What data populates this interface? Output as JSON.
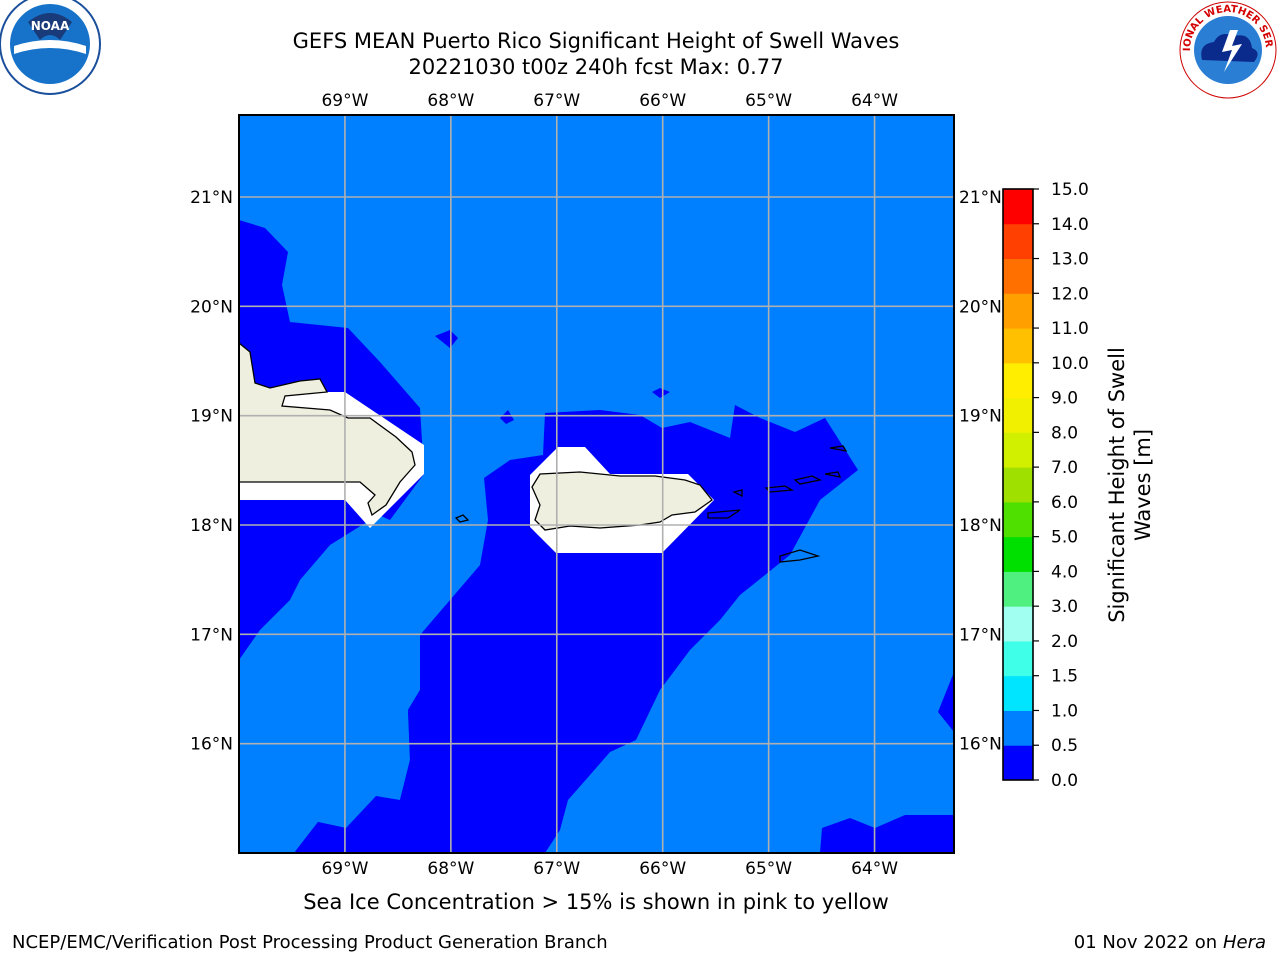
{
  "title": "GEFS MEAN Puerto Rico Significant Height of Swell Waves",
  "subtitle": "20221030 t00z 240h fcst   Max: 0.77",
  "note": "Sea Ice Concentration > 15% is shown in pink to yellow",
  "footer": {
    "left": "NCEP/EMC/Verification Post Processing Product Generation Branch",
    "date": "01 Nov 2022 on",
    "machine": "Hera"
  },
  "logos": {
    "left": "noaa-logo",
    "left_text": "NOAA",
    "right": "nws-logo",
    "right_text": "NATIONAL WEATHER SERVICE"
  },
  "map": {
    "lon_range": [
      -70,
      -63.25
    ],
    "lat_range": [
      15,
      21.75
    ],
    "lon_ticks": [
      "69°W",
      "68°W",
      "67°W",
      "66°W",
      "65°W",
      "64°W"
    ],
    "lat_ticks": [
      "16°N",
      "17°N",
      "18°N",
      "19°N",
      "20°N",
      "21°N"
    ],
    "grid": true,
    "land_color": "#efefdf",
    "coastline_color": "#000000"
  },
  "colorbar": {
    "label_line1": "Significant Height of Swell",
    "label_line2": "Waves [m]",
    "ticks": [
      "0.0",
      "0.5",
      "1.0",
      "1.5",
      "2.0",
      "3.0",
      "4.0",
      "5.0",
      "6.0",
      "7.0",
      "8.0",
      "9.0",
      "10.0",
      "11.0",
      "12.0",
      "13.0",
      "14.0",
      "15.0"
    ],
    "colors": [
      "#0000ff",
      "#0080ff",
      "#00e5ff",
      "#40ffe8",
      "#a0fff0",
      "#50f080",
      "#00e000",
      "#50e000",
      "#a0e000",
      "#d0f000",
      "#f0f000",
      "#ffee00",
      "#ffc000",
      "#ffa000",
      "#ff7000",
      "#ff4000",
      "#ff0000"
    ]
  }
}
